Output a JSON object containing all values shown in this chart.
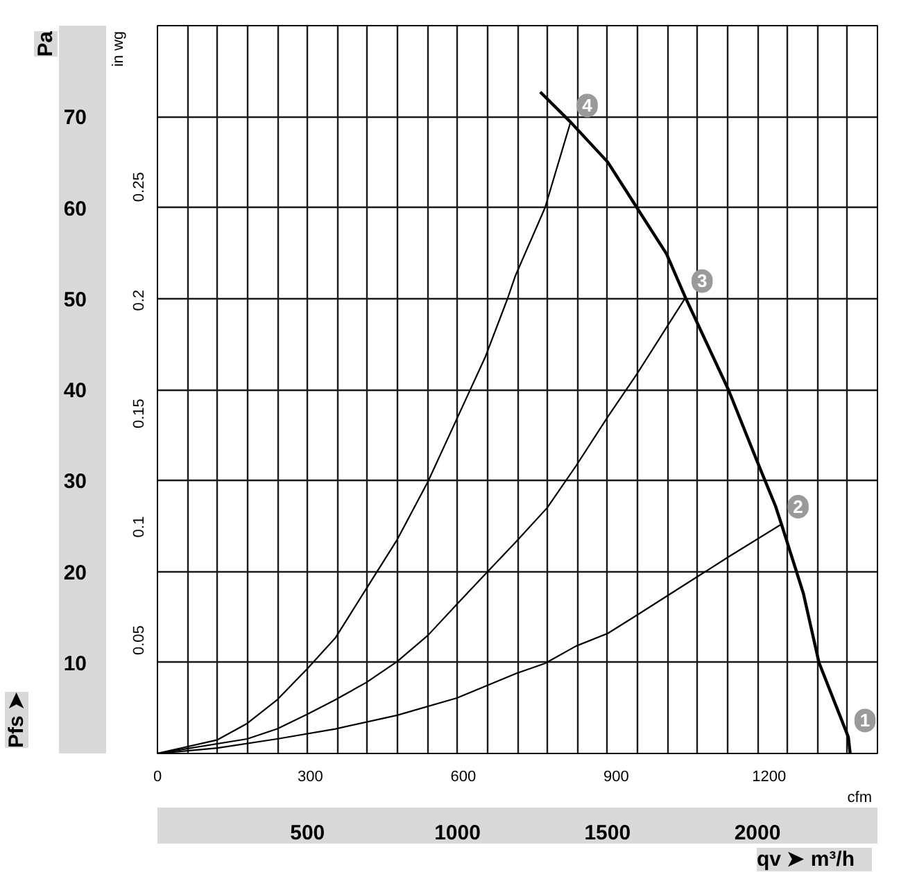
{
  "chart_data": {
    "type": "line",
    "xlabel": "m³/h",
    "x2label": "cfm",
    "ylabel": "Pa",
    "y2label": "in wg",
    "xlim": [
      0,
      2400
    ],
    "xticks": [
      {
        "value": 0,
        "label": null
      },
      {
        "value": 100,
        "label": null
      },
      {
        "value": 200,
        "label": null
      },
      {
        "value": 300,
        "label": null
      },
      {
        "value": 400,
        "label": null
      },
      500,
      {
        "value": 600,
        "label": null
      },
      {
        "value": 700,
        "label": null
      },
      {
        "value": 800,
        "label": null
      },
      {
        "value": 900,
        "label": null
      },
      1000,
      {
        "value": 1100,
        "label": null
      },
      {
        "value": 1200,
        "label": null
      },
      {
        "value": 1300,
        "label": null
      },
      {
        "value": 1400,
        "label": null
      },
      1500,
      {
        "value": 1600,
        "label": null
      },
      {
        "value": 1700,
        "label": null
      },
      {
        "value": 1800,
        "label": null
      },
      {
        "value": 1900,
        "label": null
      },
      2000,
      {
        "value": 2100,
        "label": null
      },
      {
        "value": 2200,
        "label": null
      },
      {
        "value": 2300,
        "label": null
      },
      {
        "value": 2400,
        "label": null
      }
    ],
    "x2lim": [
      0,
      1412.6
    ],
    "x2ticks": [
      0,
      300,
      600,
      900,
      1200
    ],
    "ylim": [
      0,
      80
    ],
    "yticks": [
      {
        "value": 0,
        "label": null
      },
      10,
      20,
      30,
      40,
      50,
      60,
      70,
      {
        "value": 80,
        "label": null
      }
    ],
    "y2lim": [
      0,
      0.3212
    ],
    "y2ticks": [
      0.05,
      0.1,
      0.15,
      0.2,
      0.25
    ],
    "grid": true,
    "series": [
      {
        "color": "#000000",
        "x": [
          1276,
          1377,
          1501,
          1598,
          1697,
          1760,
          1903,
          1999,
          2060,
          2080,
          2153,
          2205,
          2303,
          2309
        ],
        "values": [
          72.7,
          69.4,
          65.0,
          60.0,
          54.9,
          50.1,
          40.0,
          32.1,
          27.2,
          25.2,
          17.6,
          10.0,
          1.8,
          0
        ]
      },
      {
        "color": "#000000",
        "x": [
          0,
          200,
          299,
          399,
          499,
          593,
          696,
          799,
          902,
          1001,
          1093,
          1167,
          1193,
          1292,
          1377
        ],
        "values": [
          0,
          1.5,
          3.3,
          5.9,
          9.3,
          12.7,
          18.1,
          23.5,
          29.9,
          37.0,
          43.6,
          50.0,
          52.5,
          60.0,
          69.4
        ]
      },
      {
        "color": "#000000",
        "x": [
          0,
          299,
          399,
          499,
          593,
          696,
          799,
          902,
          998,
          1101,
          1196,
          1299,
          1395,
          1501,
          1598,
          1760
        ],
        "values": [
          0,
          1.6,
          2.7,
          4.3,
          5.9,
          7.8,
          10.1,
          13.0,
          16.4,
          20.0,
          23.3,
          27.0,
          31.6,
          37.0,
          41.7,
          50.1
        ]
      },
      {
        "color": "#000000",
        "x": [
          0,
          200,
          399,
          593,
          799,
          998,
          1196,
          1292,
          1395,
          1501,
          1598,
          1903,
          2080
        ],
        "values": [
          0,
          0.6,
          1.6,
          2.7,
          4.2,
          6.1,
          8.8,
          9.9,
          11.8,
          13.2,
          15.2,
          21.6,
          25.2
        ]
      }
    ],
    "annotations": [
      {
        "text": "1",
        "x": 2303,
        "y": 1.8
      },
      {
        "text": "2",
        "x": 2080,
        "y": 25.3
      },
      {
        "text": "3",
        "x": 1760,
        "y": 50.1
      },
      {
        "text": "4",
        "x": 1377,
        "y": 69.4
      },
      "Pfs ➤",
      "qv ➤"
    ]
  }
}
